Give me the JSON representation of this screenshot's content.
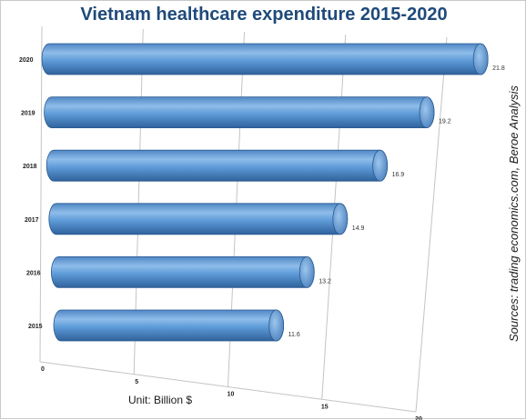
{
  "chart_data": {
    "type": "bar",
    "orientation": "horizontal",
    "title": "Vietnam healthcare expenditure 2015-2020",
    "categories": [
      "2015",
      "2016",
      "2017",
      "2018",
      "2019",
      "2020"
    ],
    "values": [
      11.6,
      13.2,
      14.9,
      16.9,
      19.2,
      21.8
    ],
    "data_labels": [
      "11.6",
      "13.2",
      "14.9",
      "16.9",
      "19.2",
      "21.8"
    ],
    "x_ticks": [
      "0",
      "5",
      "10",
      "15",
      "20"
    ],
    "xlim": [
      0,
      20
    ],
    "grid": true,
    "unit_label": "Unit: Billion $",
    "source": "Sources: trading economics.com, Beroe Analysis",
    "bar_color": "#5b9bd5"
  }
}
